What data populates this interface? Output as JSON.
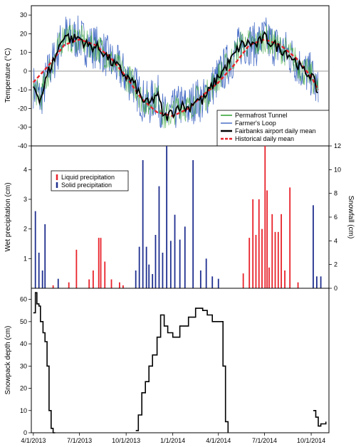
{
  "chart_data": [
    {
      "panel": "temperature",
      "type": "line",
      "ylabel": "Temperature (°C)",
      "ylim": [
        -40,
        35
      ],
      "yticks": [
        -40,
        -30,
        -20,
        -10,
        0,
        10,
        20,
        30
      ],
      "series": [
        {
          "name": "Permafrost Tunnel",
          "color": "#2ca02c",
          "style": "thin line"
        },
        {
          "name": "Farmer's Loop",
          "color": "#4a6fc7",
          "style": "thin line"
        },
        {
          "name": "Fairbanks airport daily mean",
          "color": "#000000",
          "style": "thick line",
          "x": [
            "2013-04-01",
            "2013-04-15",
            "2013-05-01",
            "2013-05-15",
            "2013-06-01",
            "2013-06-15",
            "2013-07-01",
            "2013-07-15",
            "2013-08-01",
            "2013-08-15",
            "2013-09-01",
            "2013-09-15",
            "2013-10-01",
            "2013-10-15",
            "2013-11-01",
            "2013-11-15",
            "2013-12-01",
            "2013-12-15",
            "2014-01-01",
            "2014-01-15",
            "2014-02-01",
            "2014-02-15",
            "2014-03-01",
            "2014-03-15",
            "2014-04-01",
            "2014-04-15",
            "2014-05-01",
            "2014-05-15",
            "2014-06-01",
            "2014-06-15",
            "2014-07-01",
            "2014-07-15",
            "2014-08-01",
            "2014-08-15",
            "2014-09-01",
            "2014-09-15",
            "2014-10-01",
            "2014-10-15"
          ],
          "y": [
            -8,
            -15,
            0,
            8,
            20,
            17,
            18,
            14,
            13,
            11,
            5,
            2,
            -3,
            -6,
            -15,
            -18,
            -12,
            -25,
            -22,
            -18,
            -20,
            -15,
            -16,
            -10,
            -3,
            2,
            8,
            14,
            15,
            14,
            18,
            15,
            12,
            10,
            5,
            0,
            -2,
            -12
          ]
        },
        {
          "name": "Historical daily mean",
          "color": "#e8222a",
          "style": "thick dashed",
          "x": [
            "2013-04-01",
            "2013-05-01",
            "2013-06-01",
            "2013-07-01",
            "2013-08-01",
            "2013-09-01",
            "2013-10-01",
            "2013-11-01",
            "2013-12-01",
            "2014-01-01",
            "2014-02-01",
            "2014-03-01",
            "2014-04-01",
            "2014-05-01",
            "2014-06-01",
            "2014-07-01",
            "2014-08-01",
            "2014-09-01",
            "2014-10-01",
            "2014-10-15"
          ],
          "y": [
            -6,
            3,
            14,
            17,
            14,
            7,
            -3,
            -15,
            -22,
            -24,
            -20,
            -13,
            -6,
            3,
            14,
            17,
            14,
            7,
            -3,
            -10
          ]
        }
      ],
      "zero_line": true,
      "legend_placement": "bottom-right"
    },
    {
      "panel": "precipitation",
      "type": "bar",
      "ylabel": "Wet precipitation (cm)",
      "ylabel_right": "Snowfall (cm)",
      "ylim": [
        0,
        4.8
      ],
      "yticks": [
        1,
        2,
        3,
        4
      ],
      "ylim_right": [
        0,
        12
      ],
      "yticks_right": [
        0,
        2,
        4,
        6,
        8,
        10,
        12
      ],
      "series": [
        {
          "name": "Liquid precipitation",
          "color": "#e8222a",
          "axis": "left",
          "x": [
            "2013-05-10",
            "2013-06-10",
            "2013-06-25",
            "2013-07-20",
            "2013-07-28",
            "2013-08-08",
            "2013-08-12",
            "2013-08-20",
            "2013-09-02",
            "2013-09-18",
            "2013-09-25",
            "2014-05-20",
            "2014-06-01",
            "2014-06-08",
            "2014-06-14",
            "2014-06-20",
            "2014-06-26",
            "2014-07-02",
            "2014-07-06",
            "2014-07-10",
            "2014-07-16",
            "2014-07-22",
            "2014-07-28",
            "2014-08-03",
            "2014-08-10",
            "2014-08-20",
            "2014-09-05"
          ],
          "y": [
            0.1,
            0.2,
            1.3,
            0.3,
            0.6,
            1.7,
            1.7,
            0.9,
            0.3,
            0.2,
            0.1,
            0.5,
            1.7,
            3.0,
            1.8,
            3.0,
            2.0,
            4.8,
            3.3,
            0.7,
            2.5,
            1.9,
            1.9,
            2.5,
            0.6,
            3.4,
            0.2
          ]
        },
        {
          "name": "Solid precipitation",
          "color": "#1f2f8f",
          "axis": "right",
          "x": [
            "2013-04-05",
            "2013-04-12",
            "2013-04-19",
            "2013-04-24",
            "2013-05-20",
            "2013-10-20",
            "2013-10-27",
            "2013-11-03",
            "2013-11-10",
            "2013-11-15",
            "2013-11-22",
            "2013-11-28",
            "2013-12-05",
            "2013-12-12",
            "2013-12-20",
            "2013-12-28",
            "2014-01-05",
            "2014-01-15",
            "2014-01-25",
            "2014-02-10",
            "2014-02-25",
            "2014-03-08",
            "2014-03-20",
            "2014-04-01",
            "2014-10-05",
            "2014-10-12",
            "2014-10-20"
          ],
          "y": [
            6.5,
            3.0,
            1.5,
            5.4,
            0.8,
            1.5,
            3.5,
            10.8,
            3.5,
            2.0,
            1.2,
            4.5,
            8.6,
            3.0,
            12.0,
            4.0,
            6.2,
            4.1,
            5.2,
            10.8,
            1.5,
            2.5,
            1.0,
            0.8,
            7.0,
            1.0,
            1.0
          ]
        }
      ],
      "legend_placement": "top-left"
    },
    {
      "panel": "snowpack",
      "type": "line",
      "ylabel": "Snowpack depth (cm)",
      "ylim": [
        0,
        65
      ],
      "yticks": [
        0,
        10,
        20,
        30,
        40,
        50,
        60
      ],
      "series": [
        {
          "name": "Snowpack depth",
          "color": "#000000",
          "x": [
            "2013-04-01",
            "2013-04-05",
            "2013-04-08",
            "2013-04-12",
            "2013-04-15",
            "2013-04-20",
            "2013-04-24",
            "2013-04-28",
            "2013-05-02",
            "2013-05-06",
            "2013-05-10",
            "2013-05-14",
            "2013-10-20",
            "2013-10-25",
            "2013-11-01",
            "2013-11-08",
            "2013-11-15",
            "2013-11-22",
            "2013-12-01",
            "2013-12-08",
            "2013-12-15",
            "2013-12-22",
            "2014-01-01",
            "2014-01-15",
            "2014-02-01",
            "2014-02-15",
            "2014-03-01",
            "2014-03-10",
            "2014-03-20",
            "2014-04-01",
            "2014-04-10",
            "2014-04-15",
            "2014-04-20",
            "2014-10-05",
            "2014-10-10",
            "2014-10-15",
            "2014-10-20",
            "2014-10-30"
          ],
          "y": [
            54,
            63,
            58,
            57,
            50,
            45,
            41,
            30,
            10,
            2,
            0,
            0,
            1,
            8,
            18,
            23,
            30,
            35,
            43,
            53,
            48,
            45,
            43,
            48,
            52,
            56,
            55,
            53,
            50,
            50,
            30,
            5,
            0,
            10,
            7,
            3,
            4,
            5
          ]
        }
      ]
    }
  ],
  "x_axis": {
    "ticks": [
      "4/1/2013",
      "7/1/2013",
      "10/1/2013",
      "1/1/2014",
      "4/1/2014",
      "7/1/2014",
      "10/1/2014"
    ],
    "range": [
      "2013-03-28",
      "2014-11-05"
    ]
  }
}
